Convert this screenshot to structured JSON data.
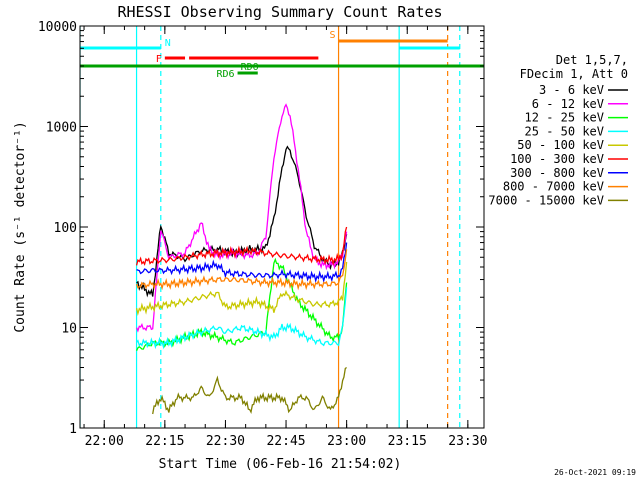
{
  "chart_data": {
    "type": "line",
    "title": "RHESSI Observing Summary Count Rates",
    "xlabel": "Start Time (06-Feb-16 21:54:02)",
    "ylabel": "Count Rate (s⁻¹ detector⁻¹)",
    "y_scale": "log",
    "xlim": [
      "21:54",
      "23:34"
    ],
    "ylim": [
      1,
      10000
    ],
    "x_ticks": [
      "22:00",
      "22:15",
      "22:30",
      "22:45",
      "23:00",
      "23:15",
      "23:30"
    ],
    "y_ticks": [
      "1",
      "10",
      "100",
      "1000",
      "10000"
    ],
    "legend_header": [
      "Det 1,5,7,",
      "FDecim 1, Att 0"
    ],
    "legend_placement": "right",
    "footer_date": "26-Oct-2021 09:19",
    "series": [
      {
        "name": "3 - 6 keV",
        "color": "#000000",
        "x": [
          "22:08",
          "22:10",
          "22:12",
          "22:14",
          "22:16",
          "22:20",
          "22:24",
          "22:28",
          "22:32",
          "22:36",
          "22:38",
          "22:40",
          "22:42",
          "22:44",
          "22:45",
          "22:46",
          "22:48",
          "22:50",
          "22:52",
          "22:54",
          "22:56",
          "22:58",
          "22:59",
          "23:00"
        ],
        "values": [
          28,
          24,
          21,
          105,
          55,
          48,
          58,
          60,
          55,
          60,
          60,
          62,
          120,
          380,
          600,
          580,
          320,
          130,
          65,
          48,
          42,
          45,
          55,
          85
        ]
      },
      {
        "name": "6 - 12 keV",
        "color": "#ff00ff",
        "x": [
          "22:08",
          "22:10",
          "22:12",
          "22:14",
          "22:16",
          "22:20",
          "22:24",
          "22:26",
          "22:28",
          "22:32",
          "22:36",
          "22:38",
          "22:40",
          "22:42",
          "22:44",
          "22:45",
          "22:46",
          "22:48",
          "22:50",
          "22:52",
          "22:54",
          "22:56",
          "22:58",
          "22:59",
          "23:00"
        ],
        "values": [
          10,
          10,
          10,
          95,
          50,
          55,
          110,
          60,
          52,
          55,
          52,
          55,
          80,
          500,
          1300,
          1600,
          1300,
          380,
          90,
          48,
          42,
          42,
          45,
          55,
          90
        ]
      },
      {
        "name": "12 - 25 keV",
        "color": "#00ff00",
        "x": [
          "22:08",
          "22:12",
          "22:16",
          "22:20",
          "22:24",
          "22:28",
          "22:32",
          "22:36",
          "22:40",
          "22:42",
          "22:44",
          "22:48",
          "22:52",
          "22:56",
          "22:58",
          "22:59",
          "23:00"
        ],
        "values": [
          6,
          7,
          7,
          8,
          9,
          8,
          7,
          8,
          9,
          45,
          40,
          18,
          12,
          8,
          8,
          10,
          28
        ]
      },
      {
        "name": "25 - 50 keV",
        "color": "#00ffff",
        "x": [
          "22:08",
          "22:12",
          "22:16",
          "22:20",
          "22:24",
          "22:28",
          "22:30",
          "22:34",
          "22:38",
          "22:42",
          "22:44",
          "22:46",
          "22:50",
          "22:54",
          "22:58",
          "22:59",
          "23:00"
        ],
        "values": [
          7,
          7,
          7,
          8,
          9,
          10,
          9,
          10,
          9,
          8,
          10,
          10,
          8,
          7,
          7,
          10,
          25
        ]
      },
      {
        "name": "50 - 100 keV",
        "color": "#c8c800",
        "x": [
          "22:08",
          "22:12",
          "22:16",
          "22:20",
          "22:24",
          "22:28",
          "22:30",
          "22:34",
          "22:38",
          "22:42",
          "22:44",
          "22:48",
          "22:52",
          "22:56",
          "22:58",
          "22:59",
          "23:00"
        ],
        "values": [
          15,
          16,
          17,
          18,
          20,
          22,
          16,
          17,
          18,
          15,
          22,
          19,
          17,
          17,
          18,
          20,
          45
        ]
      },
      {
        "name": "100 - 300 keV",
        "color": "#ff0000",
        "x": [
          "22:08",
          "22:12",
          "22:16",
          "22:20",
          "22:24",
          "22:28",
          "22:32",
          "22:36",
          "22:40",
          "22:44",
          "22:48",
          "22:52",
          "22:56",
          "22:58",
          "22:59",
          "23:00"
        ],
        "values": [
          45,
          46,
          47,
          50,
          53,
          55,
          56,
          58,
          55,
          52,
          50,
          48,
          47,
          48,
          55,
          100
        ]
      },
      {
        "name": "300 - 800 keV",
        "color": "#0000ff",
        "x": [
          "22:08",
          "22:12",
          "22:16",
          "22:20",
          "22:24",
          "22:28",
          "22:30",
          "22:34",
          "22:38",
          "22:42",
          "22:44",
          "22:48",
          "22:52",
          "22:56",
          "22:58",
          "22:59",
          "23:00"
        ],
        "values": [
          36,
          37,
          37,
          38,
          39,
          42,
          35,
          34,
          33,
          33,
          34,
          33,
          32,
          32,
          33,
          38,
          70
        ]
      },
      {
        "name": "800 - 7000 keV",
        "color": "#ff8000",
        "x": [
          "22:08",
          "22:12",
          "22:16",
          "22:20",
          "22:24",
          "22:28",
          "22:32",
          "22:36",
          "22:40",
          "22:44",
          "22:48",
          "22:52",
          "22:56",
          "22:58",
          "22:59",
          "23:00"
        ],
        "values": [
          26,
          27,
          27,
          28,
          29,
          30,
          30,
          29,
          28,
          28,
          27,
          27,
          27,
          28,
          33,
          60
        ]
      },
      {
        "name": "7000 - 15000 keV",
        "color": "#808000",
        "x": [
          "22:12",
          "22:14",
          "22:16",
          "22:18",
          "22:20",
          "22:22",
          "22:24",
          "22:26",
          "22:28",
          "22:30",
          "22:32",
          "22:34",
          "22:36",
          "22:38",
          "22:40",
          "22:42",
          "22:44",
          "22:46",
          "22:48",
          "22:50",
          "22:52",
          "22:54",
          "22:56",
          "22:58",
          "22:59",
          "23:00"
        ],
        "values": [
          1.5,
          2,
          1.5,
          2,
          2,
          2,
          2.5,
          2,
          3,
          2,
          2,
          2,
          1.5,
          2,
          2,
          2,
          2,
          1.5,
          2,
          2,
          1.5,
          2,
          1.5,
          2,
          3,
          4
        ]
      }
    ],
    "flags": [
      {
        "label": "N",
        "color": "#00ffff",
        "segments": [
          [
            "21:54",
            "22:14"
          ],
          [
            "23:13",
            "23:28"
          ]
        ]
      },
      {
        "label": "F",
        "color": "#ff0000",
        "segments": [
          [
            "22:15",
            "22:20"
          ],
          [
            "22:21",
            "22:53"
          ]
        ]
      },
      {
        "label": "RDO",
        "color": "#00a000",
        "segments": [
          [
            "21:54",
            "23:34"
          ]
        ]
      },
      {
        "label": "RD6",
        "color": "#00a000",
        "segments": [
          [
            "22:33",
            "22:38"
          ]
        ]
      },
      {
        "label": "S",
        "color": "#ff8000",
        "segments": [
          [
            "22:58",
            "23:25"
          ]
        ]
      }
    ],
    "vertical_markers": [
      {
        "time": "21:54",
        "color": "#00ffff",
        "style": "solid"
      },
      {
        "time": "22:08",
        "color": "#00ffff",
        "style": "solid"
      },
      {
        "time": "22:14",
        "color": "#00ffff",
        "style": "dashed"
      },
      {
        "time": "22:58",
        "color": "#ff8000",
        "style": "solid"
      },
      {
        "time": "23:13",
        "color": "#00ffff",
        "style": "solid"
      },
      {
        "time": "23:25",
        "color": "#ff8000",
        "style": "dashed"
      },
      {
        "time": "23:28",
        "color": "#00ffff",
        "style": "dashed"
      }
    ]
  }
}
